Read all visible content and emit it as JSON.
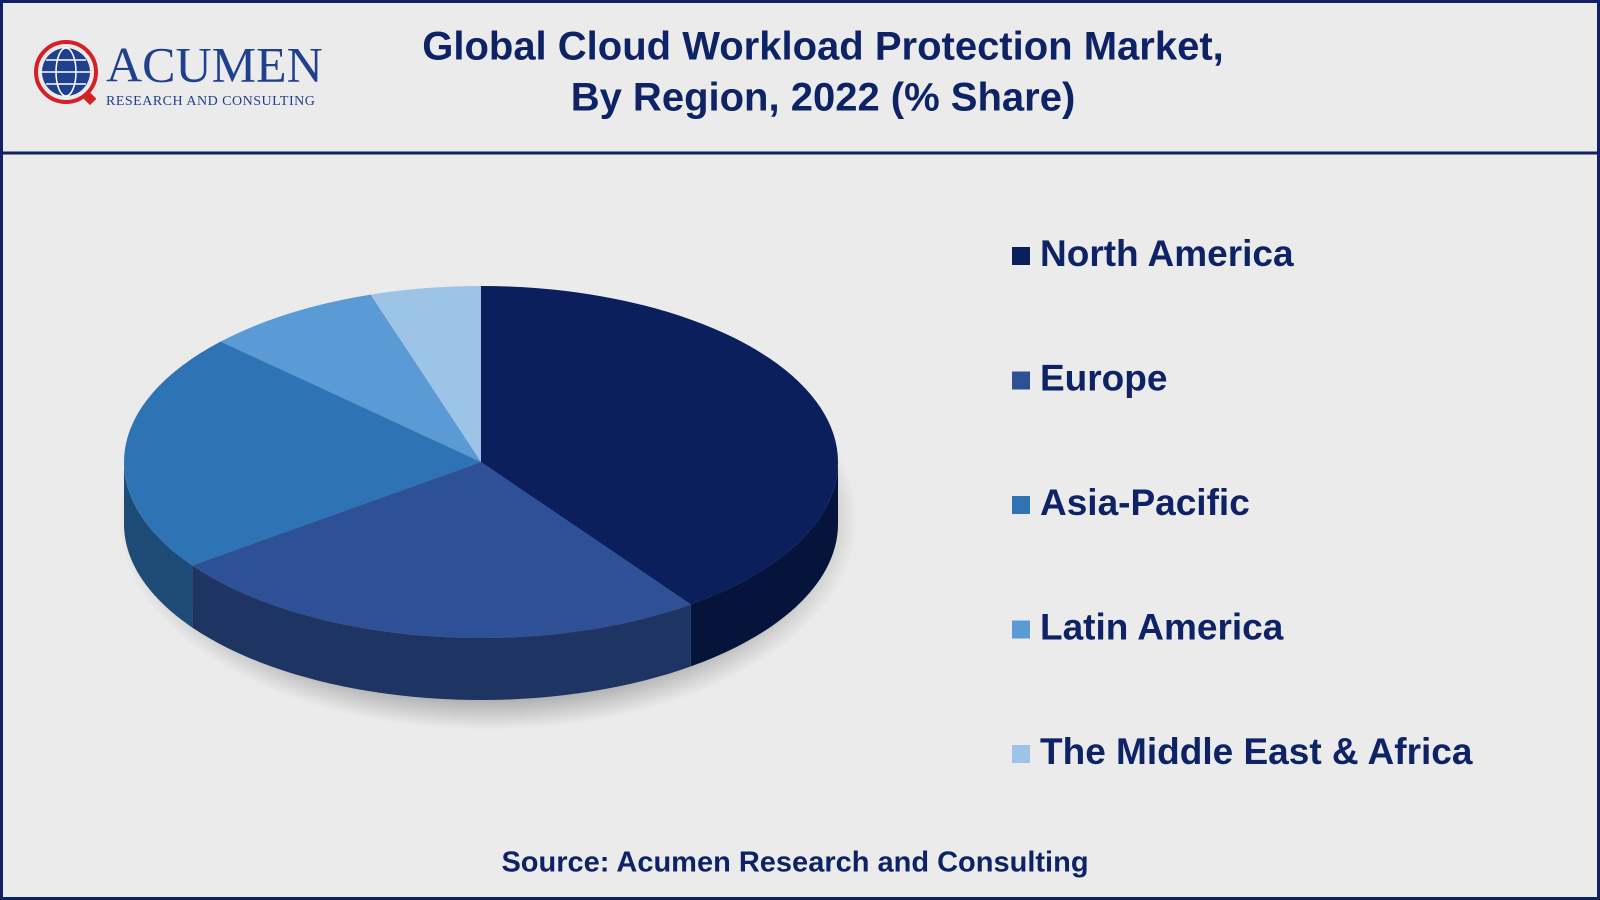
{
  "logo": {
    "name": "ACUMEN",
    "tagline": "RESEARCH AND CONSULTING"
  },
  "chart_data": {
    "type": "pie3d",
    "title": "Global Cloud Workload Protection Market,",
    "subtitle": "By Region, 2022 (% Share)",
    "categories": [
      "North America",
      "Europe",
      "Asia-Pacific",
      "Latin America",
      "The Middle East & Africa"
    ],
    "values": [
      40,
      25,
      22,
      8,
      5
    ],
    "colors": [
      "#0a1f5c",
      "#2e5096",
      "#2e74b5",
      "#5b9bd5",
      "#9dc3e6"
    ],
    "legend": "right",
    "source": "Source: Acumen Research and Consulting"
  }
}
